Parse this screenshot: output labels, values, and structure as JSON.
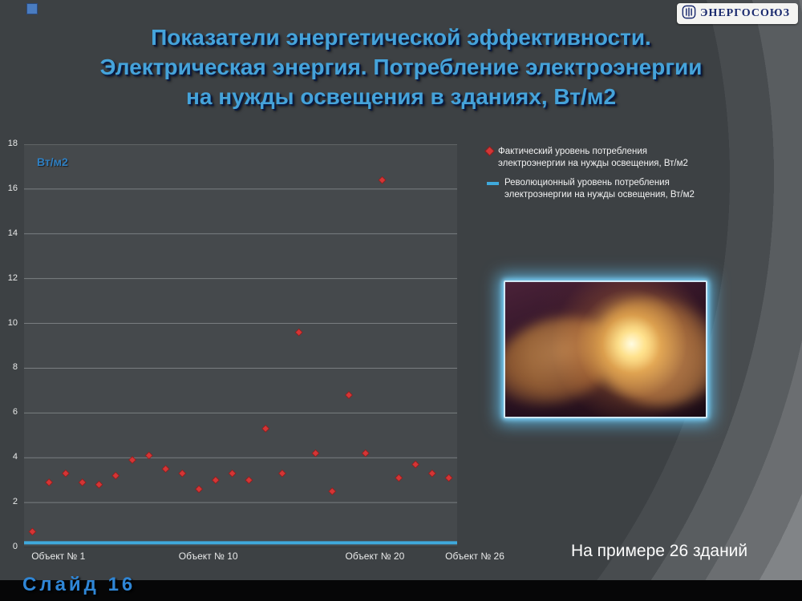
{
  "slide": {
    "title_lines": [
      "Показатели энергетической эффективности.",
      "Электрическая энергия. Потребление электроэнергии",
      "на нужды освещения в зданиях, Вт/м2"
    ],
    "logo_text": "ЭНЕРГОСОЮЗ",
    "note": "На примере 26 зданий",
    "slide_label": "Слайд 16"
  },
  "chart_data": {
    "type": "scatter",
    "plot_unit_label": "Вт/м2",
    "ylim": [
      0,
      18
    ],
    "ytick_step": 2,
    "n_points": 26,
    "x_categories_shown": [
      "Объект № 1",
      "Объект № 10",
      "Объект № 20",
      "Объект № 26"
    ],
    "x_category_positions": [
      1,
      10,
      20,
      26
    ],
    "grid": true,
    "legend_position": "right",
    "series": [
      {
        "name": "Фактический уровень потребления электроэнергии на нужды освещения, Вт/м2",
        "type": "scatter",
        "marker": "diamond",
        "color": "#d43535",
        "x": [
          1,
          2,
          3,
          4,
          5,
          6,
          7,
          8,
          9,
          10,
          11,
          12,
          13,
          14,
          15,
          16,
          17,
          18,
          19,
          20,
          21,
          22,
          23,
          24,
          25,
          26
        ],
        "values": [
          0.7,
          2.9,
          3.3,
          2.9,
          2.8,
          3.2,
          3.9,
          4.1,
          3.5,
          3.3,
          2.6,
          3.0,
          3.3,
          3.0,
          5.3,
          3.3,
          9.6,
          4.2,
          2.5,
          6.8,
          4.2,
          16.4,
          3.1,
          3.7,
          3.3,
          3.1
        ]
      },
      {
        "name": "Революционный уровень потребления электроэнергии на нужды освещения, Вт/м2",
        "type": "line",
        "color": "#3fa9dc",
        "value": 0.2
      }
    ]
  }
}
